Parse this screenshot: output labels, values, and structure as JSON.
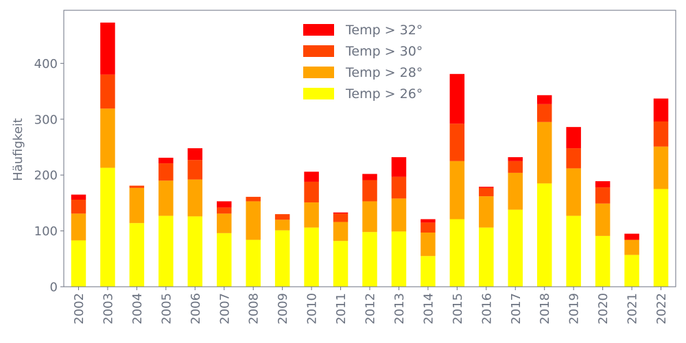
{
  "chart_data": {
    "type": "bar",
    "stacked": true,
    "categories": [
      "2002",
      "2003",
      "2004",
      "2005",
      "2006",
      "2007",
      "2008",
      "2009",
      "2010",
      "2011",
      "2012",
      "2013",
      "2014",
      "2015",
      "2016",
      "2017",
      "2018",
      "2019",
      "2020",
      "2021",
      "2022"
    ],
    "series": [
      {
        "name": "Temp > 26°",
        "color": "#ffff00",
        "values": [
          83,
          213,
          114,
          127,
          126,
          96,
          84,
          101,
          106,
          82,
          98,
          99,
          55,
          121,
          106,
          138,
          185,
          127,
          91,
          57,
          175
        ]
      },
      {
        "name": "Temp > 28°",
        "color": "#ffa500",
        "values": [
          48,
          106,
          63,
          63,
          66,
          35,
          69,
          19,
          45,
          34,
          55,
          59,
          42,
          104,
          56,
          66,
          110,
          85,
          58,
          27,
          76
        ]
      },
      {
        "name": "Temp > 30°",
        "color": "#ff4500",
        "values": [
          25,
          61,
          4,
          31,
          35,
          11,
          8,
          10,
          37,
          15,
          38,
          39,
          18,
          67,
          15,
          21,
          32,
          36,
          29,
          0,
          45
        ]
      },
      {
        "name": "Temp > 32°",
        "color": "#ff0000",
        "values": [
          9,
          93,
          0,
          10,
          21,
          11,
          0,
          0,
          18,
          2,
          11,
          35,
          6,
          89,
          2,
          7,
          16,
          38,
          11,
          11,
          41
        ]
      }
    ],
    "legend_order": [
      3,
      2,
      1,
      0
    ],
    "title": "",
    "xlabel": "",
    "ylabel": "Häufigkeit",
    "ylim": [
      0,
      495
    ],
    "yticks": [
      0,
      100,
      200,
      300,
      400
    ],
    "grid": false,
    "legend_position": "top-center"
  }
}
